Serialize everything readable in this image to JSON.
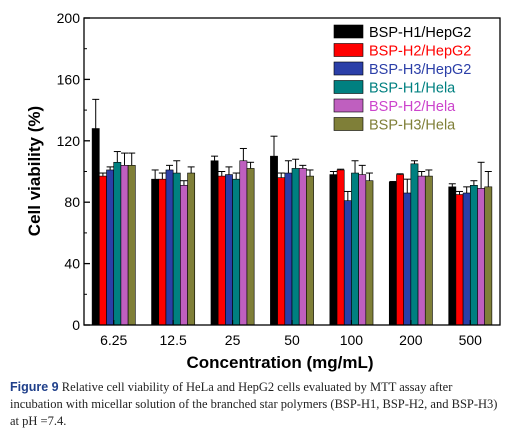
{
  "chart_data": {
    "type": "bar",
    "title": "",
    "xlabel": "Concentration (mg/mL)",
    "ylabel": "Cell viability (%)",
    "categories": [
      "6.25",
      "12.5",
      "25",
      "50",
      "100",
      "200",
      "500"
    ],
    "ylim": [
      0,
      200
    ],
    "yticks": [
      0,
      40,
      80,
      120,
      160,
      200
    ],
    "legend_position": "top-right",
    "error_bars": true,
    "series": [
      {
        "name": "BSP-H1/HepG2",
        "color": "#000000",
        "label_color": "#000000",
        "values": [
          128,
          95,
          107,
          110,
          98,
          93,
          90
        ],
        "errors": [
          19,
          6,
          3,
          13,
          2,
          0.5,
          2
        ]
      },
      {
        "name": "BSP-H2/HepG2",
        "color": "#ff0000",
        "label_color": "#ff0000",
        "values": [
          97,
          95,
          97,
          96,
          101,
          98,
          85
        ],
        "errors": [
          2,
          4,
          3,
          3,
          0.5,
          0.5,
          2
        ]
      },
      {
        "name": "BSP-H3/HepG2",
        "color": "#2b3fa8",
        "label_color": "#2b3fa8",
        "values": [
          101,
          101,
          98,
          99,
          81,
          86,
          86
        ],
        "errors": [
          2,
          3,
          5,
          8,
          6,
          9,
          4
        ]
      },
      {
        "name": "BSP-H1/Hela",
        "color": "#008080",
        "label_color": "#008080",
        "values": [
          106,
          99,
          95,
          102,
          99,
          105,
          91
        ],
        "errors": [
          7,
          8,
          4,
          6,
          8,
          2,
          3
        ]
      },
      {
        "name": "BSP-H2/Hela",
        "color": "#bf5fbf",
        "label_color": "#cc44cc",
        "values": [
          104,
          91,
          107,
          102,
          98,
          97,
          89
        ],
        "errors": [
          8,
          3,
          8,
          2,
          6,
          3,
          17
        ]
      },
      {
        "name": "BSP-H3/Hela",
        "color": "#7f7f38",
        "label_color": "#7f7f38",
        "values": [
          104,
          99,
          102,
          97,
          94,
          97,
          90
        ],
        "errors": [
          8,
          4,
          4,
          4,
          5,
          4,
          10
        ]
      }
    ]
  },
  "caption": {
    "label": "Figure 9",
    "text": "Relative cell viability of HeLa and HepG2 cells evaluated by MTT assay after incubation with micellar solution of the branched star polymers (BSP-H1, BSP-H2, and BSP-H3) at pH =7.4."
  }
}
